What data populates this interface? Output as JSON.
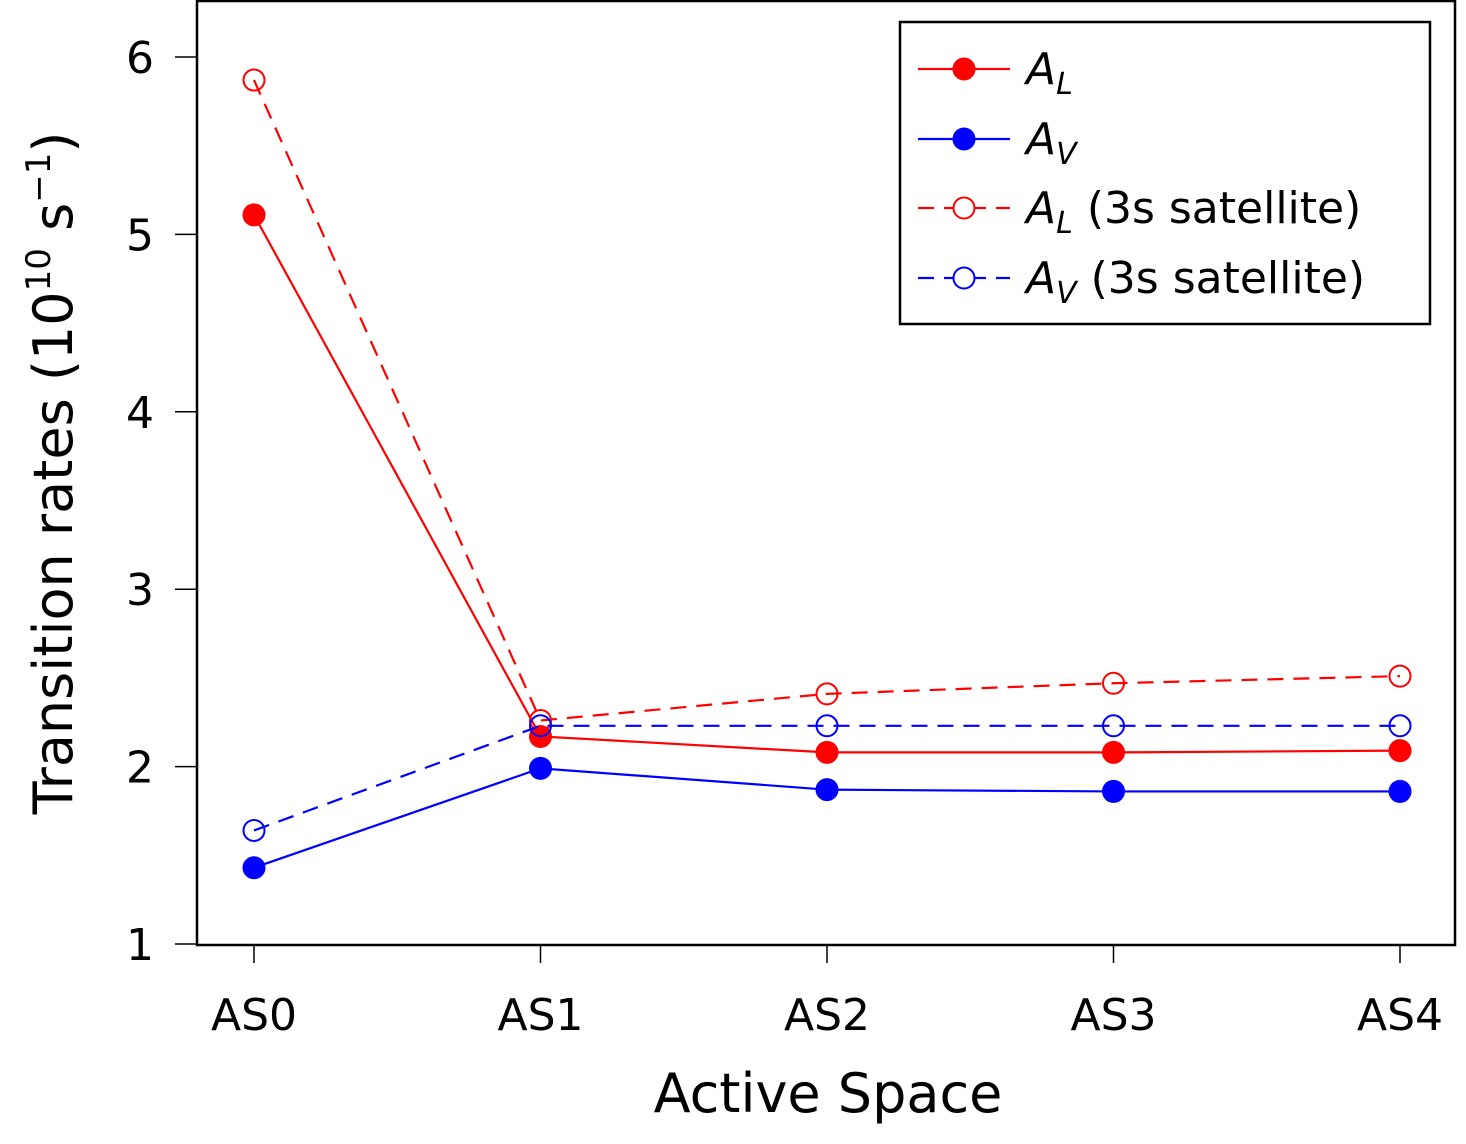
{
  "chart_data": {
    "type": "line",
    "categories": [
      "AS0",
      "AS1",
      "AS2",
      "AS3",
      "AS4"
    ],
    "xlabel": "Active Space",
    "ylabel": {
      "main": "Transition rates (10",
      "exp1": "10",
      "unit": " s",
      "exp2": "−1",
      "close": ")"
    },
    "ylim": [
      1,
      6.3
    ],
    "yticks": [
      1,
      2,
      3,
      4,
      5,
      6
    ],
    "grid": false,
    "legend_position": "top-right",
    "series": [
      {
        "name": "A_L",
        "legend": {
          "sym": "A",
          "sub": "L",
          "suffix": ""
        },
        "color": "#ff0000",
        "style": "solid",
        "marker": "filled",
        "values": [
          5.11,
          2.17,
          2.08,
          2.08,
          2.09
        ]
      },
      {
        "name": "A_V",
        "legend": {
          "sym": "A",
          "sub": "V",
          "suffix": ""
        },
        "color": "#0000ff",
        "style": "solid",
        "marker": "filled",
        "values": [
          1.43,
          1.99,
          1.87,
          1.86,
          1.86
        ]
      },
      {
        "name": "A_L (3s satellite)",
        "legend": {
          "sym": "A",
          "sub": "L",
          "suffix": " (3s satellite)"
        },
        "color": "#ff0000",
        "style": "dashed",
        "marker": "open",
        "values": [
          5.87,
          2.26,
          2.41,
          2.47,
          2.51
        ]
      },
      {
        "name": "A_V (3s satellite)",
        "legend": {
          "sym": "A",
          "sub": "V",
          "suffix": " (3s satellite)"
        },
        "color": "#0000ff",
        "style": "dashed",
        "marker": "open",
        "values": [
          1.64,
          2.23,
          2.23,
          2.23,
          2.23
        ]
      }
    ]
  }
}
